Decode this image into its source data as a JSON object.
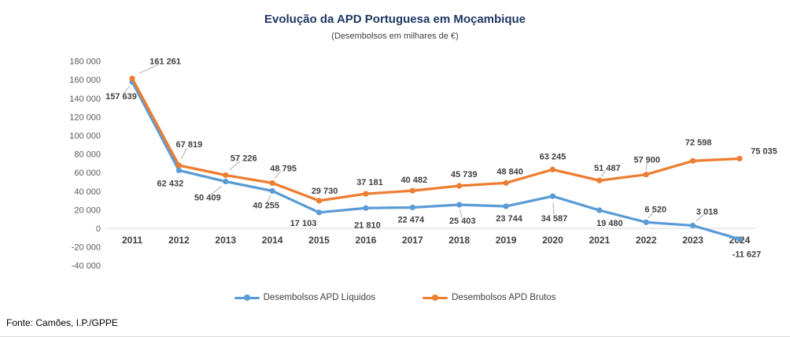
{
  "window": {
    "source_note": "Fonte: Camões, I.P./GPPE"
  },
  "chart_data": {
    "type": "line",
    "title": "Evolução da APD Portuguesa em Moçambique",
    "subtitle": "(Desembolsos em milhares de €)",
    "categories": [
      "2011",
      "2012",
      "2013",
      "2014",
      "2015",
      "2016",
      "2017",
      "2018",
      "2019",
      "2020",
      "2021",
      "2022",
      "2023",
      "2024"
    ],
    "series": [
      {
        "name": "Desembolsos APD Líquidos",
        "color": "#5B9BD5",
        "values": [
          157639,
          62432,
          50409,
          40255,
          17103,
          21810,
          22474,
          25403,
          23744,
          34587,
          19480,
          6520,
          3018,
          -11627
        ],
        "label_offset": [
          [
            -14,
            18
          ],
          [
            -11,
            16
          ],
          [
            -23,
            20
          ],
          [
            -8,
            18
          ],
          [
            -20,
            13
          ],
          [
            2,
            21
          ],
          [
            -2,
            15
          ],
          [
            4,
            20
          ],
          [
            4,
            15
          ],
          [
            2,
            28
          ],
          [
            13,
            16
          ],
          [
            12,
            -17
          ],
          [
            18,
            -18
          ],
          [
            9,
            19
          ]
        ],
        "label_leader": [
          true,
          false,
          true,
          true,
          false,
          false,
          false,
          true,
          false,
          true,
          false,
          true,
          true,
          false
        ]
      },
      {
        "name": "Desembolsos APD Brutos",
        "color": "#ED7D31",
        "values": [
          161261,
          67819,
          57226,
          48795,
          29730,
          37181,
          40482,
          45739,
          48840,
          63245,
          51487,
          57900,
          72598,
          75035
        ],
        "label_offset": [
          [
            42,
            -22
          ],
          [
            13,
            -27
          ],
          [
            23,
            -22
          ],
          [
            14,
            -19
          ],
          [
            7,
            -13
          ],
          [
            5,
            -15
          ],
          [
            2,
            -14
          ],
          [
            6,
            -15
          ],
          [
            5,
            -15
          ],
          [
            0,
            -17
          ],
          [
            10,
            -16
          ],
          [
            1,
            -19
          ],
          [
            7,
            -24
          ],
          [
            31,
            -10
          ]
        ],
        "label_leader": [
          true,
          true,
          true,
          true,
          false,
          false,
          false,
          false,
          false,
          false,
          true,
          true,
          false,
          false
        ]
      }
    ],
    "ylim": [
      -40000,
      180000
    ],
    "ytick_step": 20000,
    "yticks": [
      180000,
      160000,
      140000,
      120000,
      100000,
      80000,
      60000,
      40000,
      20000,
      0,
      -20000,
      -40000
    ],
    "grid": "zero-axis-line-only",
    "legend_position": "bottom",
    "data_labels": "on",
    "number_format": "space-thousands"
  },
  "colors": {
    "title": "#1f3864",
    "subtitle": "#404040",
    "data_label": "#404040",
    "axis_tick_label": "#595959",
    "x_axis_label": "#404040",
    "axis_line": "#d9d9d9",
    "leader_line": "#a6a6a6",
    "background": "#ffffff"
  }
}
